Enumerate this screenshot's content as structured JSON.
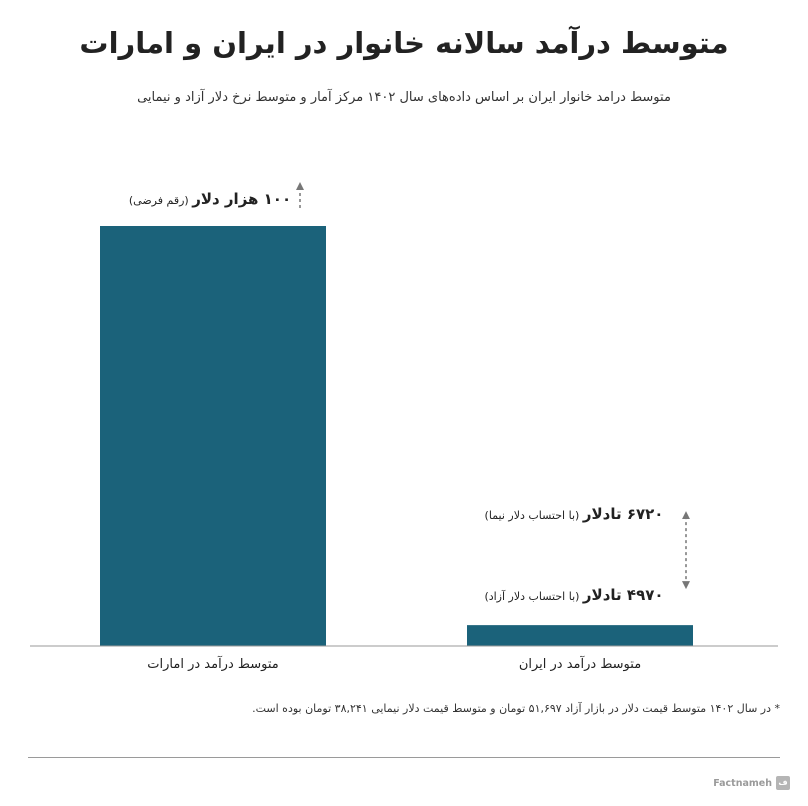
{
  "title": "متوسط درآمد سالانه خانوار در ایران و امارات",
  "subtitle": "متوسط درامد خانوار ایران بر اساس داده‌های سال ۱۴۰۲ مرکز آمار و متوسط نرخ دلار  آزاد و نیمایی",
  "footnote": "* در سال ۱۴۰۲ متوسط قیمت دلار در بازار آزاد ۵۱,۶۹۷ تومان و متوسط قیمت دلار نیمایی ۳۸,۲۴۱ تومان بوده است.",
  "brand": "Factnameh",
  "colors": {
    "bar": "#1b627a",
    "axis": "#999999",
    "arrow": "#777777",
    "text": "#222222"
  },
  "chart_data": {
    "type": "bar",
    "categories": [
      "متوسط درآمد در امارات",
      "متوسط درآمد در ایران"
    ],
    "values": [
      100000,
      4970
    ],
    "iran_nima_value": 6720,
    "ylim": [
      0,
      100000
    ],
    "grid": false,
    "annotations": {
      "uae_main": "۱۰۰ هزار دلار",
      "uae_note": "(رقم فرضی)",
      "iran_nima_main": "۶۷۲۰ تادلار",
      "iran_nima_note": "(با احتساب دلار نیما)",
      "iran_free_main": "۴۹۷۰ تادلار",
      "iran_free_note": "(با احتساب دلار آزاد)"
    }
  }
}
